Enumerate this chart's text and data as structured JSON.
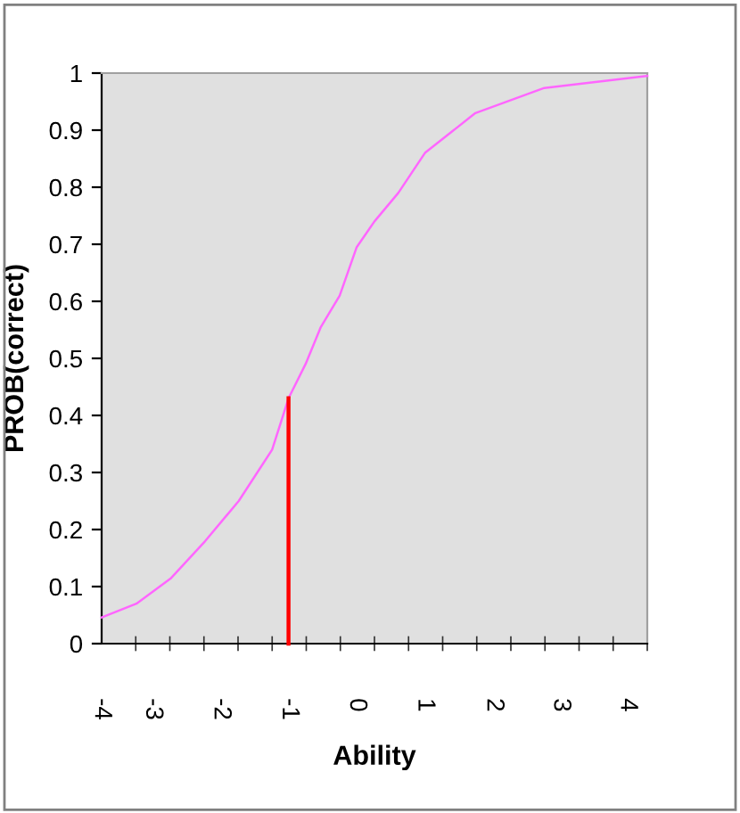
{
  "chart_data": {
    "type": "line",
    "xlabel": "Ability",
    "ylabel": "PROB(correct)",
    "series": [
      {
        "color": "#ff66ff",
        "x": [
          -4,
          -3.49,
          -2.99,
          -2.48,
          -1.99,
          -1.5,
          -1.26,
          -1.01,
          -0.79,
          -0.51,
          -0.26,
          0,
          0.35,
          0.74,
          1.48,
          2.49,
          4
        ],
        "values": [
          0.046,
          0.07,
          0.114,
          0.18,
          0.25,
          0.34,
          0.43,
          0.49,
          0.554,
          0.61,
          0.695,
          0.74,
          0.79,
          0.86,
          0.93,
          0.974,
          0.995
        ]
      },
      {
        "color": "#ff0000",
        "x": [
          -1.26,
          -1.26
        ],
        "values": [
          0,
          0.43
        ]
      }
    ],
    "xlim": [
      -4,
      4
    ],
    "ylim": [
      0,
      1
    ],
    "xticks": [
      {
        "value": -4,
        "label": "-4"
      },
      {
        "value": -3.25,
        "label": "-3"
      },
      {
        "value": -2.25,
        "label": "-2"
      },
      {
        "value": -1.25,
        "label": "-1"
      },
      {
        "value": -0.26,
        "label": "0"
      },
      {
        "value": 0.74,
        "label": "1"
      },
      {
        "value": 1.75,
        "label": "2"
      },
      {
        "value": 2.73,
        "label": "3"
      },
      {
        "value": 3.71,
        "label": "4"
      },
      {
        "value": -3.5,
        "label": null
      },
      {
        "value": -3,
        "label": null
      },
      {
        "value": -2.5,
        "label": null
      },
      {
        "value": -2,
        "label": null
      },
      {
        "value": -1.5,
        "label": null
      },
      {
        "value": -1,
        "label": null
      },
      {
        "value": -0.5,
        "label": null
      },
      {
        "value": 0,
        "label": null
      },
      {
        "value": 0.5,
        "label": null
      },
      {
        "value": 1,
        "label": null
      },
      {
        "value": 1.5,
        "label": null
      },
      {
        "value": 2,
        "label": null
      },
      {
        "value": 2.5,
        "label": null
      },
      {
        "value": 3,
        "label": null
      },
      {
        "value": 3.5,
        "label": null
      },
      {
        "value": 4,
        "label": null
      }
    ],
    "yticks": [
      0,
      0.1,
      0.2,
      0.3,
      0.4,
      0.5,
      0.6,
      0.7,
      0.8,
      0.9,
      1
    ],
    "grid": false,
    "legend": false,
    "marker": "none",
    "line_style": "solid"
  }
}
